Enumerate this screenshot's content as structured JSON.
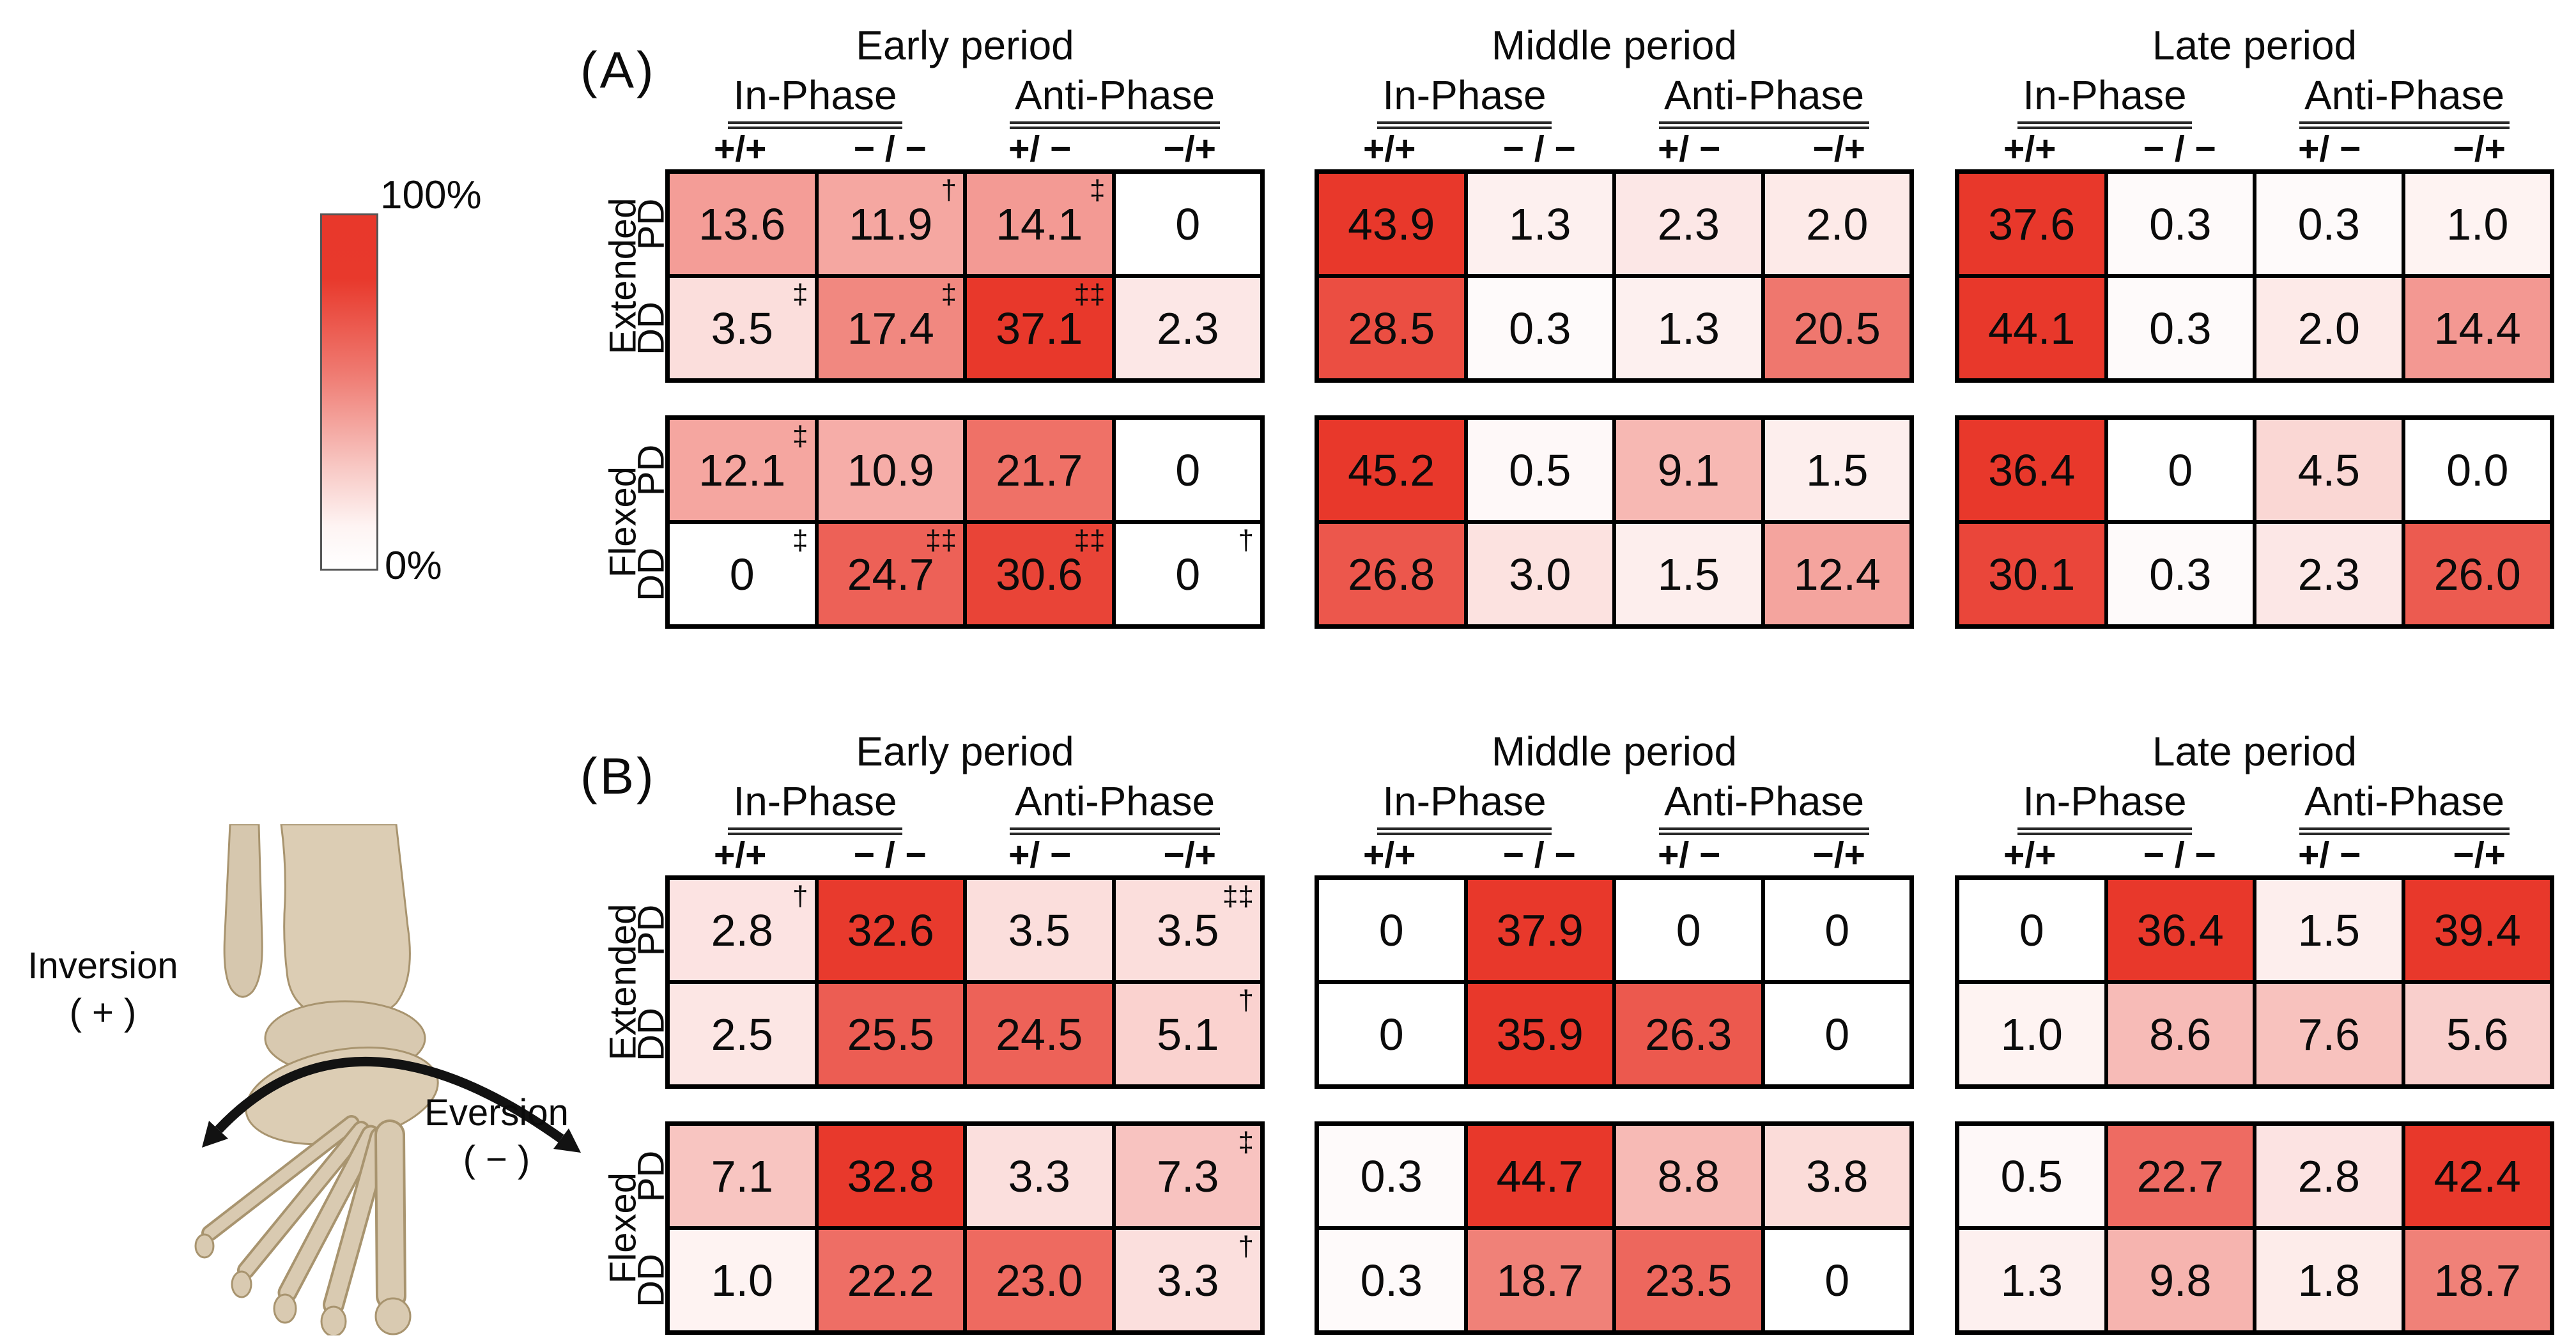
{
  "colorbar": {
    "max_label": "100%",
    "min_label": "0%",
    "max_color": "#E8382B",
    "min_color": "#FFFFFF"
  },
  "foot_figure": {
    "inversion_label": "Inversion",
    "inversion_sign": "( + )",
    "eversion_label": "Eversion",
    "eversion_sign": "( − )"
  },
  "chart_data": {
    "type": "heatmap",
    "value_unit": "percent",
    "color_scale": {
      "min": 0,
      "max": 100,
      "min_label": "0%",
      "max_label": "100%",
      "min_color": "#FFFFFF",
      "max_color": "#E8382B"
    },
    "column_groups": [
      {
        "label": "In-Phase",
        "columns": [
          "+/+",
          "− / −"
        ]
      },
      {
        "label": "Anti-Phase",
        "columns": [
          "+/ −",
          "−/+"
        ]
      }
    ],
    "row_group_names": [
      "Extended",
      "Flexed"
    ],
    "row_names": [
      "PD",
      "DD"
    ],
    "panels": [
      {
        "label": "(A)",
        "periods": [
          {
            "title": "Early period",
            "groups": [
              {
                "name": "Extended",
                "rows": [
                  {
                    "name": "PD",
                    "cells": [
                      {
                        "v": "13.6"
                      },
                      {
                        "v": "11.9",
                        "sup": "†"
                      },
                      {
                        "v": "14.1",
                        "sup": "‡"
                      },
                      {
                        "v": "0"
                      }
                    ]
                  },
                  {
                    "name": "DD",
                    "cells": [
                      {
                        "v": "3.5",
                        "sup": "‡"
                      },
                      {
                        "v": "17.4",
                        "sup": "‡"
                      },
                      {
                        "v": "37.1",
                        "sup": "‡‡"
                      },
                      {
                        "v": "2.3"
                      }
                    ]
                  }
                ]
              },
              {
                "name": "Flexed",
                "rows": [
                  {
                    "name": "PD",
                    "cells": [
                      {
                        "v": "12.1",
                        "sup": "‡"
                      },
                      {
                        "v": "10.9"
                      },
                      {
                        "v": "21.7"
                      },
                      {
                        "v": "0"
                      }
                    ]
                  },
                  {
                    "name": "DD",
                    "cells": [
                      {
                        "v": "0",
                        "sup": "‡"
                      },
                      {
                        "v": "24.7",
                        "sup": "‡‡"
                      },
                      {
                        "v": "30.6",
                        "sup": "‡‡"
                      },
                      {
                        "v": "0",
                        "sup": "†"
                      }
                    ]
                  }
                ]
              }
            ]
          },
          {
            "title": "Middle period",
            "groups": [
              {
                "name": "Extended",
                "rows": [
                  {
                    "name": "PD",
                    "cells": [
                      {
                        "v": "43.9"
                      },
                      {
                        "v": "1.3"
                      },
                      {
                        "v": "2.3"
                      },
                      {
                        "v": "2.0"
                      }
                    ]
                  },
                  {
                    "name": "DD",
                    "cells": [
                      {
                        "v": "28.5"
                      },
                      {
                        "v": "0.3"
                      },
                      {
                        "v": "1.3"
                      },
                      {
                        "v": "20.5"
                      }
                    ]
                  }
                ]
              },
              {
                "name": "Flexed",
                "rows": [
                  {
                    "name": "PD",
                    "cells": [
                      {
                        "v": "45.2"
                      },
                      {
                        "v": "0.5"
                      },
                      {
                        "v": "9.1"
                      },
                      {
                        "v": "1.5"
                      }
                    ]
                  },
                  {
                    "name": "DD",
                    "cells": [
                      {
                        "v": "26.8"
                      },
                      {
                        "v": "3.0"
                      },
                      {
                        "v": "1.5"
                      },
                      {
                        "v": "12.4"
                      }
                    ]
                  }
                ]
              }
            ]
          },
          {
            "title": "Late period",
            "groups": [
              {
                "name": "Extended",
                "rows": [
                  {
                    "name": "PD",
                    "cells": [
                      {
                        "v": "37.6"
                      },
                      {
                        "v": "0.3"
                      },
                      {
                        "v": "0.3"
                      },
                      {
                        "v": "1.0"
                      }
                    ]
                  },
                  {
                    "name": "DD",
                    "cells": [
                      {
                        "v": "44.1"
                      },
                      {
                        "v": "0.3"
                      },
                      {
                        "v": "2.0"
                      },
                      {
                        "v": "14.4"
                      }
                    ]
                  }
                ]
              },
              {
                "name": "Flexed",
                "rows": [
                  {
                    "name": "PD",
                    "cells": [
                      {
                        "v": "36.4"
                      },
                      {
                        "v": "0"
                      },
                      {
                        "v": "4.5"
                      },
                      {
                        "v": "0.0"
                      }
                    ]
                  },
                  {
                    "name": "DD",
                    "cells": [
                      {
                        "v": "30.1"
                      },
                      {
                        "v": "0.3"
                      },
                      {
                        "v": "2.3"
                      },
                      {
                        "v": "26.0"
                      }
                    ]
                  }
                ]
              }
            ]
          }
        ]
      },
      {
        "label": "(B)",
        "periods": [
          {
            "title": "Early period",
            "groups": [
              {
                "name": "Extended",
                "rows": [
                  {
                    "name": "PD",
                    "cells": [
                      {
                        "v": "2.8",
                        "sup": "†"
                      },
                      {
                        "v": "32.6"
                      },
                      {
                        "v": "3.5"
                      },
                      {
                        "v": "3.5",
                        "sup": "‡‡"
                      }
                    ]
                  },
                  {
                    "name": "DD",
                    "cells": [
                      {
                        "v": "2.5"
                      },
                      {
                        "v": "25.5"
                      },
                      {
                        "v": "24.5"
                      },
                      {
                        "v": "5.1",
                        "sup": "†"
                      }
                    ]
                  }
                ]
              },
              {
                "name": "Flexed",
                "rows": [
                  {
                    "name": "PD",
                    "cells": [
                      {
                        "v": "7.1"
                      },
                      {
                        "v": "32.8"
                      },
                      {
                        "v": "3.3"
                      },
                      {
                        "v": "7.3",
                        "sup": "‡"
                      }
                    ]
                  },
                  {
                    "name": "DD",
                    "cells": [
                      {
                        "v": "1.0"
                      },
                      {
                        "v": "22.2"
                      },
                      {
                        "v": "23.0"
                      },
                      {
                        "v": "3.3",
                        "sup": "†"
                      }
                    ]
                  }
                ]
              }
            ]
          },
          {
            "title": "Middle period",
            "groups": [
              {
                "name": "Extended",
                "rows": [
                  {
                    "name": "PD",
                    "cells": [
                      {
                        "v": "0"
                      },
                      {
                        "v": "37.9"
                      },
                      {
                        "v": "0"
                      },
                      {
                        "v": "0"
                      }
                    ]
                  },
                  {
                    "name": "DD",
                    "cells": [
                      {
                        "v": "0"
                      },
                      {
                        "v": "35.9"
                      },
                      {
                        "v": "26.3"
                      },
                      {
                        "v": "0"
                      }
                    ]
                  }
                ]
              },
              {
                "name": "Flexed",
                "rows": [
                  {
                    "name": "PD",
                    "cells": [
                      {
                        "v": "0.3"
                      },
                      {
                        "v": "44.7"
                      },
                      {
                        "v": "8.8"
                      },
                      {
                        "v": "3.8"
                      }
                    ]
                  },
                  {
                    "name": "DD",
                    "cells": [
                      {
                        "v": "0.3"
                      },
                      {
                        "v": "18.7"
                      },
                      {
                        "v": "23.5"
                      },
                      {
                        "v": "0"
                      }
                    ]
                  }
                ]
              }
            ]
          },
          {
            "title": "Late period",
            "groups": [
              {
                "name": "Extended",
                "rows": [
                  {
                    "name": "PD",
                    "cells": [
                      {
                        "v": "0"
                      },
                      {
                        "v": "36.4"
                      },
                      {
                        "v": "1.5"
                      },
                      {
                        "v": "39.4"
                      }
                    ]
                  },
                  {
                    "name": "DD",
                    "cells": [
                      {
                        "v": "1.0"
                      },
                      {
                        "v": "8.6"
                      },
                      {
                        "v": "7.6"
                      },
                      {
                        "v": "5.6"
                      }
                    ]
                  }
                ]
              },
              {
                "name": "Flexed",
                "rows": [
                  {
                    "name": "PD",
                    "cells": [
                      {
                        "v": "0.5"
                      },
                      {
                        "v": "22.7"
                      },
                      {
                        "v": "2.8"
                      },
                      {
                        "v": "42.4"
                      }
                    ]
                  },
                  {
                    "name": "DD",
                    "cells": [
                      {
                        "v": "1.3"
                      },
                      {
                        "v": "9.8"
                      },
                      {
                        "v": "1.8"
                      },
                      {
                        "v": "18.7"
                      }
                    ]
                  }
                ]
              }
            ]
          }
        ]
      }
    ]
  }
}
